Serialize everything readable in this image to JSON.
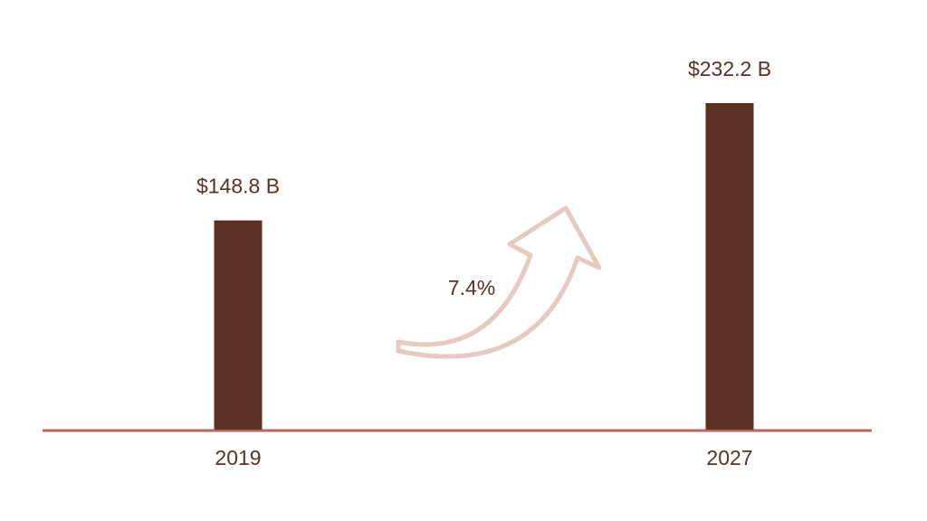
{
  "chart_data": {
    "type": "bar",
    "categories": [
      "2019",
      "2027"
    ],
    "values": [
      148.8,
      232.2
    ],
    "value_labels": [
      "$148.8 B",
      "$232.2 B"
    ],
    "color": "#5c3124",
    "annotation": "7.4%"
  }
}
